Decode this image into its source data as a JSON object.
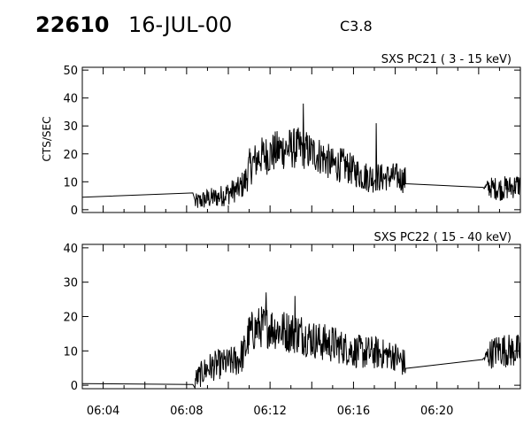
{
  "header": {
    "event_id": "22610",
    "date": "16-JUL-00",
    "flare_class": "C3.8"
  },
  "chart_data": [
    {
      "type": "line",
      "title": "SXS PC21  (  3 - 15 keV)",
      "ylabel": "CTS/SEC",
      "xlabel": "",
      "xlim": [
        "06:03",
        "06:24"
      ],
      "ylim": [
        -1,
        51
      ],
      "y_ticks": [
        0,
        10,
        20,
        30,
        40,
        50
      ],
      "x_ticks": [
        "06:04",
        "06:08",
        "06:12",
        "06:16",
        "06:20"
      ],
      "x_tick_labels_shown": false,
      "grid": false,
      "series": [
        {
          "x": [
            "06:03",
            "06:08.3",
            "06:08.4",
            "06:09",
            "06:09.5",
            "06:10",
            "06:10.5",
            "06:10.8",
            "06:11",
            "06:11.5",
            "06:12",
            "06:12.5",
            "06:13",
            "06:13.5",
            "06:14",
            "06:14.5",
            "06:15",
            "06:15.5",
            "06:16",
            "06:16.5",
            "06:17",
            "06:17.5",
            "06:18",
            "06:18.5",
            "06:22.2",
            "06:22.5",
            "06:23",
            "06:23.5",
            "06:24"
          ],
          "values": [
            4.5,
            6.0,
            2.5,
            4.0,
            4.5,
            6.0,
            7.5,
            10.0,
            15.0,
            19.0,
            20.0,
            21.5,
            22.0,
            22.0,
            20.5,
            19.0,
            16.0,
            16.0,
            14.0,
            12.0,
            11.5,
            11.5,
            12.0,
            10.5,
            8.0,
            8.0,
            7.5,
            8.0,
            9.0
          ],
          "noise": [
            0,
            0,
            2.5,
            3.0,
            3.0,
            3.5,
            3.5,
            4.5,
            5.5,
            5.5,
            6.0,
            6.0,
            6.0,
            6.0,
            5.5,
            5.5,
            5.0,
            5.0,
            4.5,
            4.5,
            4.5,
            4.0,
            4.0,
            4.0,
            0,
            3.0,
            3.5,
            3.5,
            3.5
          ],
          "spikes": [
            {
              "x": "06:13.6",
              "y": 38
            },
            {
              "x": "06:17.1",
              "y": 31
            }
          ]
        }
      ]
    },
    {
      "type": "line",
      "title": "SXS PC22  ( 15 - 40 keV)",
      "ylabel": "",
      "xlabel": "",
      "xlim": [
        "06:03",
        "06:24"
      ],
      "ylim": [
        -1,
        41
      ],
      "y_ticks": [
        0,
        10,
        20,
        30,
        40
      ],
      "x_ticks": [
        "06:04",
        "06:08",
        "06:12",
        "06:16",
        "06:20"
      ],
      "x_tick_labels_shown": true,
      "grid": false,
      "series": [
        {
          "x": [
            "06:03",
            "06:08.3",
            "06:08.4",
            "06:09",
            "06:09.5",
            "06:10",
            "06:10.5",
            "06:10.8",
            "06:11",
            "06:11.5",
            "06:12",
            "06:12.5",
            "06:13",
            "06:13.5",
            "06:14",
            "06:14.5",
            "06:15",
            "06:15.5",
            "06:16",
            "06:16.5",
            "06:17",
            "06:17.5",
            "06:18",
            "06:18.5",
            "06:22.2",
            "06:22.5",
            "06:23",
            "06:23.5",
            "06:24"
          ],
          "values": [
            0.5,
            0.2,
            1.5,
            5.0,
            6.0,
            6.5,
            7.5,
            10.0,
            15.0,
            17.0,
            17.0,
            16.0,
            15.5,
            15.0,
            13.5,
            12.5,
            12.0,
            11.0,
            10.0,
            9.5,
            9.5,
            9.0,
            8.5,
            6.0,
            7.5,
            9.0,
            10.5,
            10.0,
            10.0
          ],
          "noise": [
            0,
            0,
            2.5,
            3.5,
            3.5,
            3.5,
            4.0,
            4.5,
            5.0,
            5.0,
            5.0,
            5.0,
            5.0,
            5.0,
            4.5,
            4.5,
            4.5,
            4.0,
            4.0,
            4.0,
            4.0,
            3.5,
            3.5,
            3.5,
            0,
            3.5,
            4.0,
            4.0,
            4.0
          ],
          "spikes": [
            {
              "x": "06:11.8",
              "y": 27
            },
            {
              "x": "06:13.2",
              "y": 26
            }
          ]
        }
      ]
    }
  ]
}
